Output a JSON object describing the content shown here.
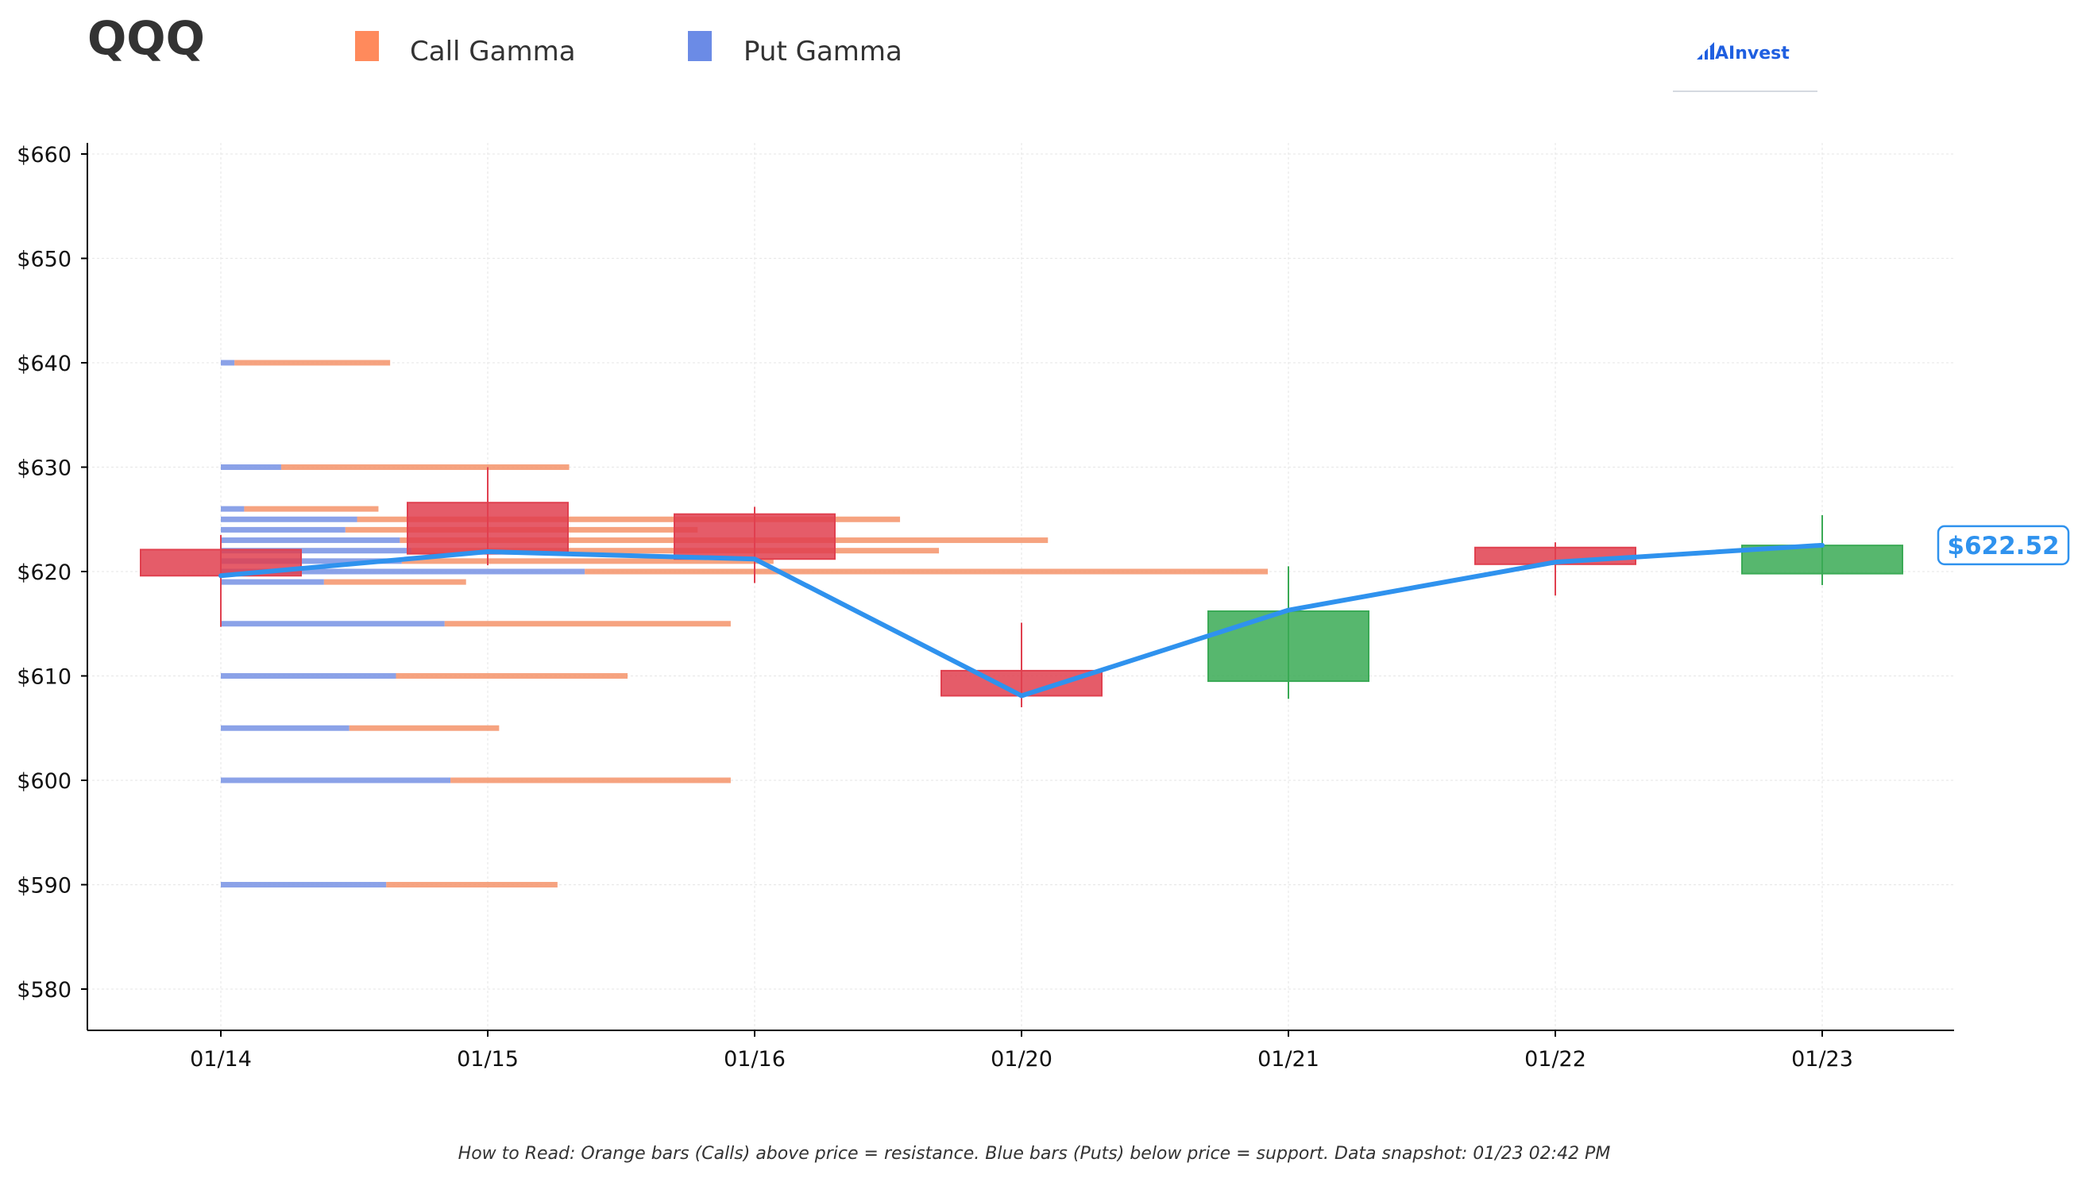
{
  "ticker": "QQQ",
  "brand": "AInvest",
  "legend": [
    {
      "label": "Call Gamma",
      "color": "#ff8a5c"
    },
    {
      "label": "Put Gamma",
      "color": "#6b8be6"
    }
  ],
  "last_price_label": "$622.52",
  "footnote": "How to Read: Orange bars (Calls) above price = resistance. Blue bars (Puts) below price = support. Data snapshot: 01/23 02:42 PM",
  "colors": {
    "call": "#f5936a",
    "put": "#7e98e6",
    "up": "#3aaa55",
    "down": "#e0404f",
    "price_line": "#2f92ee",
    "axis": "#000000",
    "grid": "#e9e9e9"
  },
  "chart_data": {
    "type": "candlestick",
    "title": "QQQ",
    "categories": [
      "01/14",
      "01/15",
      "01/16",
      "01/20",
      "01/21",
      "01/22",
      "01/23"
    ],
    "y_ticks": [
      "$580",
      "$590",
      "$600",
      "$610",
      "$620",
      "$630",
      "$640",
      "$650",
      "$660"
    ],
    "ylim": [
      576,
      661
    ],
    "grid": true,
    "legend_position": "top",
    "candles": [
      {
        "date": "01/14",
        "open": 622.1,
        "high": 623.5,
        "low": 614.7,
        "close": 619.6
      },
      {
        "date": "01/15",
        "open": 626.6,
        "high": 630.0,
        "low": 620.6,
        "close": 621.7
      },
      {
        "date": "01/16",
        "open": 625.5,
        "high": 626.2,
        "low": 618.9,
        "close": 621.2
      },
      {
        "date": "01/20",
        "open": 610.5,
        "high": 615.1,
        "low": 607.0,
        "close": 608.1
      },
      {
        "date": "01/21",
        "open": 609.5,
        "high": 620.5,
        "low": 607.8,
        "close": 616.2
      },
      {
        "date": "01/22",
        "open": 622.3,
        "high": 622.8,
        "low": 617.7,
        "close": 620.7
      },
      {
        "date": "01/23",
        "open": 619.8,
        "high": 625.4,
        "low": 618.7,
        "close": 622.5
      }
    ],
    "price_line": [
      619.6,
      621.9,
      621.2,
      608.1,
      616.3,
      620.9,
      622.52
    ],
    "gamma_bars": [
      {
        "strike": 640,
        "put": 0.07,
        "call": 0.8
      },
      {
        "strike": 630,
        "put": 0.31,
        "call": 1.48
      },
      {
        "strike": 626,
        "put": 0.12,
        "call": 0.69
      },
      {
        "strike": 625,
        "put": 0.7,
        "call": 2.79
      },
      {
        "strike": 624,
        "put": 0.64,
        "call": 1.81
      },
      {
        "strike": 623,
        "put": 0.92,
        "call": 3.33
      },
      {
        "strike": 622,
        "put": 0.98,
        "call": 2.71
      },
      {
        "strike": 621,
        "put": 0.93,
        "call": 1.91
      },
      {
        "strike": 620,
        "put": 1.87,
        "call": 3.51
      },
      {
        "strike": 619,
        "put": 0.53,
        "call": 0.73
      },
      {
        "strike": 615,
        "put": 1.15,
        "call": 1.47
      },
      {
        "strike": 610,
        "put": 0.9,
        "call": 1.19
      },
      {
        "strike": 605,
        "put": 0.66,
        "call": 0.77
      },
      {
        "strike": 600,
        "put": 1.18,
        "call": 1.44
      },
      {
        "strike": 590,
        "put": 0.85,
        "call": 0.88
      }
    ]
  }
}
